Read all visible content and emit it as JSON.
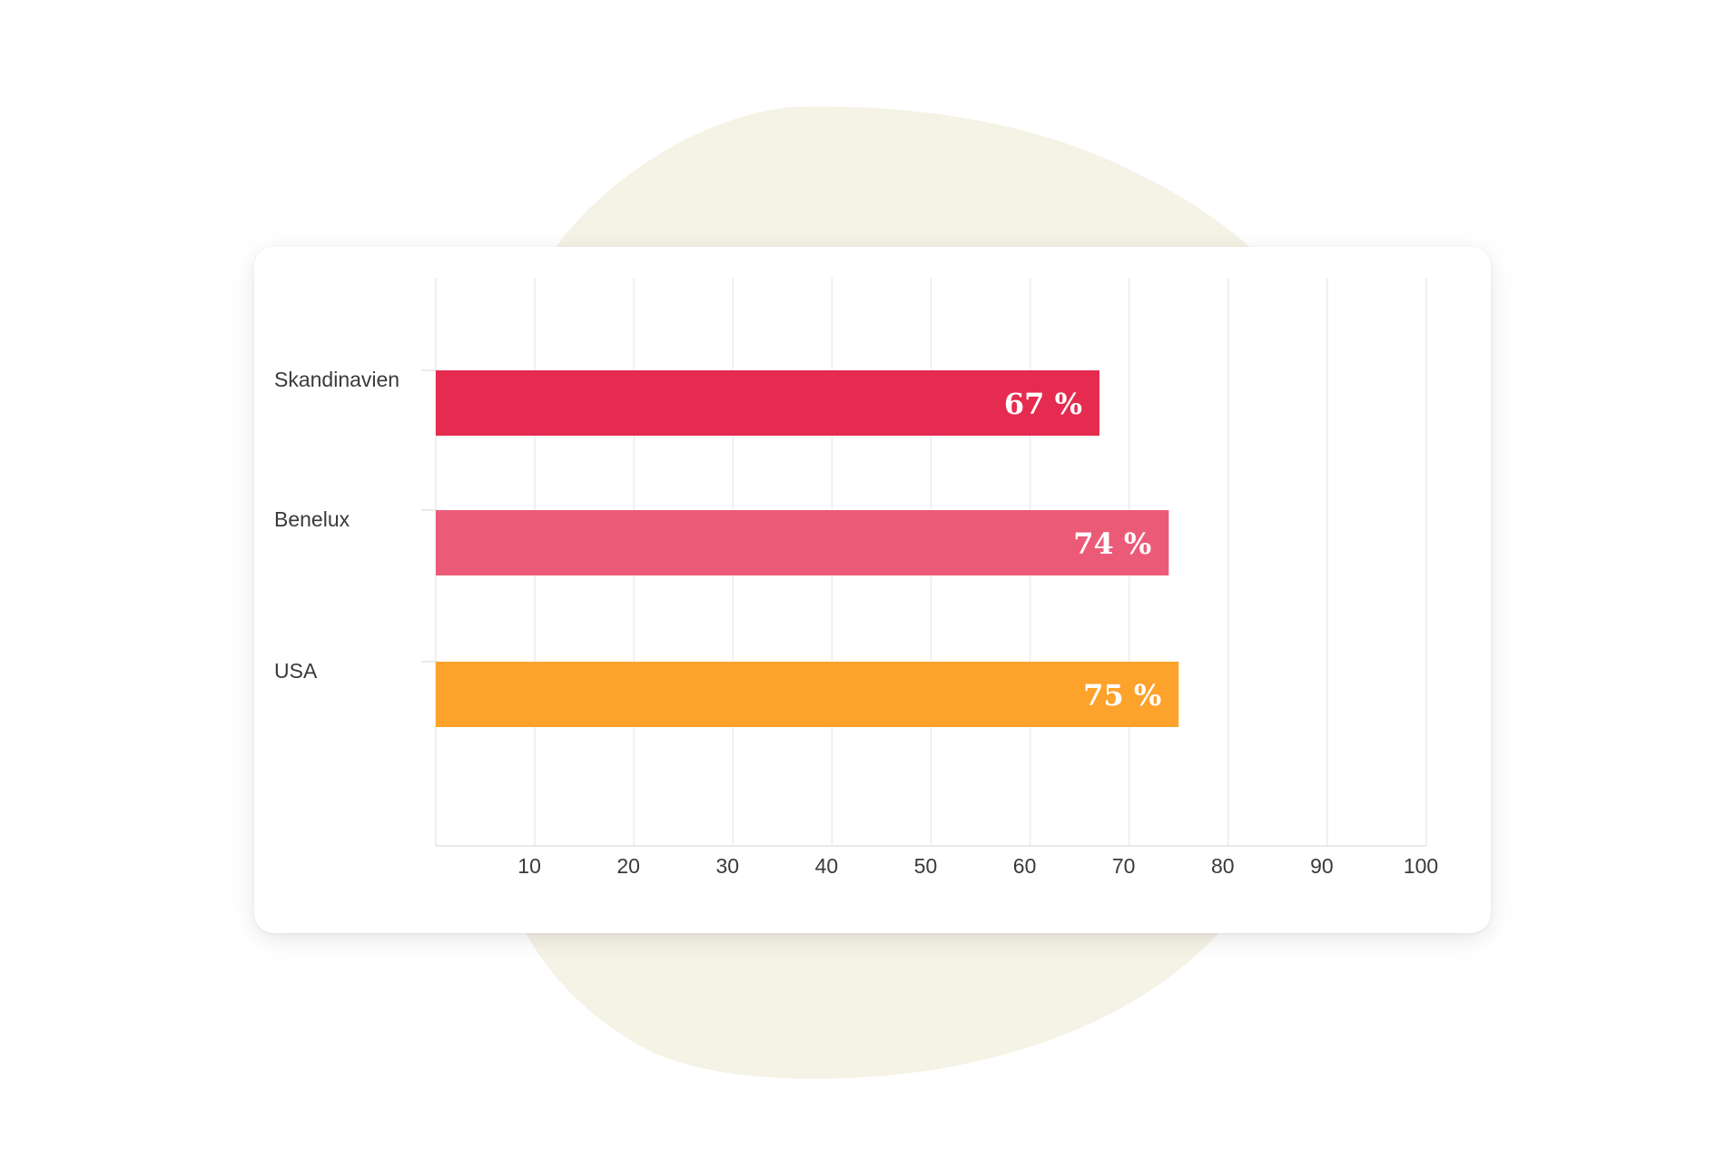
{
  "chart_data": {
    "type": "bar",
    "orientation": "horizontal",
    "categories": [
      "Skandinavien",
      "Benelux",
      "USA"
    ],
    "values": [
      67,
      74,
      75
    ],
    "value_labels": [
      "67 %",
      "74 %",
      "75 %"
    ],
    "colors": [
      "#e52b50",
      "#eb5b78",
      "#fda22b"
    ],
    "xticks": [
      "10",
      "20",
      "30",
      "40",
      "50",
      "60",
      "70",
      "80",
      "90",
      "100"
    ],
    "xlim": [
      0,
      100
    ],
    "grid": true,
    "title": "",
    "xlabel": "",
    "ylabel": ""
  },
  "background": {
    "page_color": "#ffffff",
    "blob_color": "#f5f2e6",
    "card_color": "#ffffff"
  }
}
